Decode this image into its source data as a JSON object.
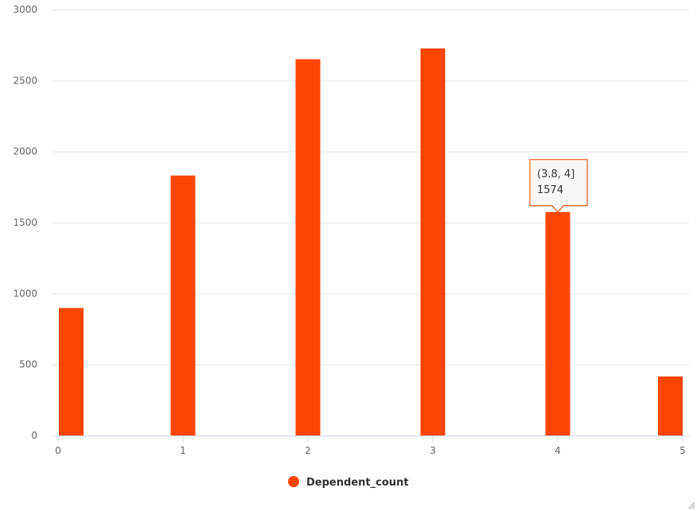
{
  "chart_data": {
    "type": "bar",
    "x": [
      0.1,
      1,
      2,
      3,
      4,
      5
    ],
    "values": [
      898,
      1831,
      2650,
      2726,
      1574,
      416
    ],
    "xlim": [
      0,
      5
    ],
    "ylim": [
      0,
      3000
    ],
    "x_ticks": [
      0,
      1,
      2,
      3,
      4,
      5
    ],
    "y_ticks": [
      0,
      500,
      1000,
      1500,
      2000,
      2500,
      3000
    ],
    "grid": true,
    "legend_position": "bottom-center",
    "series": [
      {
        "name": "Dependent_count",
        "color": "#ff4500"
      }
    ],
    "tooltip": {
      "bar_index": 4,
      "range_label": "(3.8, 4]",
      "value_label": "1574"
    }
  },
  "colors": {
    "bar": "#ff4500",
    "grid": "#e6e6e6",
    "axis": "#ccd6eb",
    "tooltip_border": "#ff4500",
    "tooltip_bg": "#f7f7f7"
  },
  "icons": {
    "resize_grip": "resize-grip-icon"
  }
}
